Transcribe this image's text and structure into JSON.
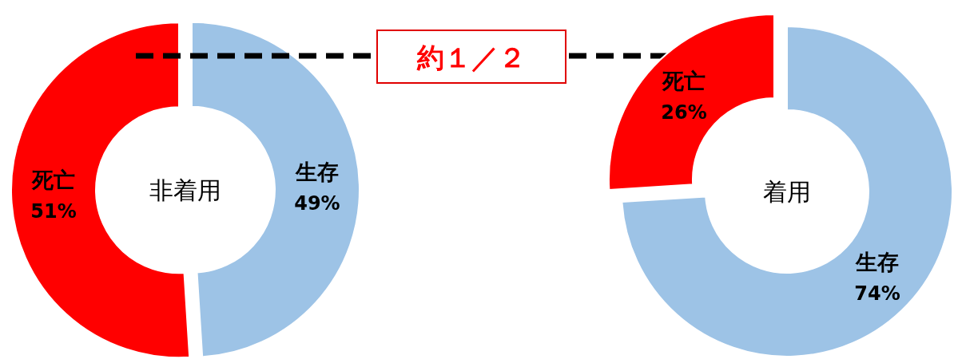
{
  "chart_data": [
    {
      "type": "donut",
      "categories": [
        "生存",
        "死亡"
      ],
      "values": [
        49,
        51
      ],
      "value_labels": [
        "49%",
        "51%"
      ],
      "colors": [
        "#9dc3e6",
        "#ff0000"
      ],
      "annotations": [
        "非着用",
        "約１／２"
      ]
    },
    {
      "type": "donut",
      "categories": [
        "生存",
        "死亡"
      ],
      "values": [
        74,
        26
      ],
      "value_labels": [
        "74%",
        "26%"
      ],
      "colors": [
        "#9dc3e6",
        "#ff0000"
      ],
      "annotations": [
        "着用"
      ]
    }
  ]
}
